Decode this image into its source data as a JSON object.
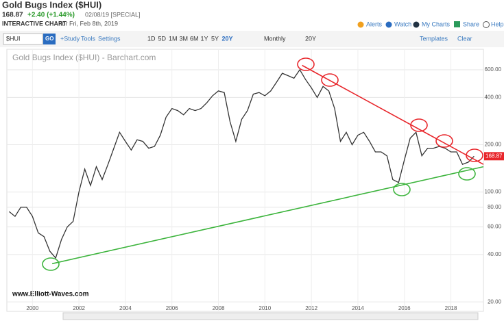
{
  "header": {
    "title": "Gold Bugs Index ($HUI)",
    "price": "168.87",
    "change": "+2.40 (+1.44%)",
    "date": "02/08/19 [SPECIAL]",
    "chart_kind": "INTERACTIVE CHART",
    "chart_for": "for Fri, Feb 8th, 2019",
    "links": [
      "Alerts",
      "Watch",
      "My Charts",
      "Share",
      "Help"
    ]
  },
  "toolbar": {
    "symbol": "$HUI",
    "go": "GO",
    "tools": [
      "+Study",
      "Tools",
      "Settings"
    ],
    "ranges": [
      "1D",
      "5D",
      "1M",
      "3M",
      "6M",
      "1Y",
      "5Y",
      "20Y"
    ],
    "interval": "Monthly",
    "period": "20Y",
    "templates": "Templates",
    "clear": "Clear"
  },
  "chart_data": {
    "type": "line",
    "title": "Gold Bugs Index ($HUI) - Barchart.com",
    "watermark": "www.Elliott-Waves.com",
    "last_label": "168.87",
    "color": "#333333",
    "log_scale": true,
    "grid": true,
    "x": [
      1999.0,
      1999.25,
      1999.5,
      1999.75,
      2000.0,
      2000.25,
      2000.5,
      2000.75,
      2001.0,
      2001.25,
      2001.5,
      2001.75,
      2002.0,
      2002.25,
      2002.5,
      2002.75,
      2003.0,
      2003.25,
      2003.5,
      2003.75,
      2004.0,
      2004.25,
      2004.5,
      2004.75,
      2005.0,
      2005.25,
      2005.5,
      2005.75,
      2006.0,
      2006.25,
      2006.5,
      2006.75,
      2007.0,
      2007.25,
      2007.5,
      2007.75,
      2008.0,
      2008.25,
      2008.5,
      2008.75,
      2009.0,
      2009.25,
      2009.5,
      2009.75,
      2010.0,
      2010.25,
      2010.5,
      2010.75,
      2011.0,
      2011.25,
      2011.5,
      2011.75,
      2012.0,
      2012.25,
      2012.5,
      2012.75,
      2013.0,
      2013.25,
      2013.5,
      2013.75,
      2014.0,
      2014.25,
      2014.5,
      2014.75,
      2015.0,
      2015.25,
      2015.5,
      2015.75,
      2016.0,
      2016.25,
      2016.5,
      2016.75,
      2017.0,
      2017.25,
      2017.5,
      2017.75,
      2018.0,
      2018.25,
      2018.5,
      2018.75,
      2019.0
    ],
    "values": [
      75,
      70,
      80,
      80,
      70,
      55,
      52,
      42,
      38,
      50,
      60,
      65,
      100,
      140,
      110,
      145,
      120,
      150,
      190,
      240,
      210,
      185,
      215,
      210,
      190,
      195,
      230,
      300,
      340,
      330,
      310,
      340,
      330,
      340,
      370,
      410,
      440,
      430,
      280,
      210,
      290,
      330,
      420,
      430,
      410,
      440,
      500,
      570,
      550,
      530,
      600,
      520,
      460,
      400,
      470,
      440,
      340,
      210,
      240,
      200,
      230,
      240,
      210,
      180,
      180,
      170,
      120,
      115,
      160,
      220,
      240,
      170,
      190,
      190,
      195,
      190,
      180,
      180,
      150,
      155,
      169
    ],
    "trendlines": [
      {
        "color": "#e8262b",
        "x": [
          2011.6,
          2019.4
        ],
        "values": [
          640,
          150
        ]
      },
      {
        "color": "#3cb43c",
        "x": [
          2000.85,
          2019.4
        ],
        "values": [
          35,
          145
        ]
      }
    ],
    "xlim": [
      1998.9,
      2019.4
    ],
    "xticks": [
      2000,
      2002,
      2004,
      2006,
      2008,
      2010,
      2012,
      2014,
      2016,
      2018
    ],
    "ylim": [
      18.3,
      690
    ],
    "yticks": [
      {
        "value": 20,
        "label": "20.00"
      },
      {
        "value": 40,
        "label": "40.00"
      },
      {
        "value": 60,
        "label": "60.00"
      },
      {
        "value": 80,
        "label": "80.00"
      },
      {
        "value": 100,
        "label": "100.00"
      },
      {
        "value": 200,
        "label": "200.00"
      },
      {
        "value": 400,
        "label": "400.00"
      },
      {
        "value": 600,
        "label": "600.00"
      }
    ]
  }
}
